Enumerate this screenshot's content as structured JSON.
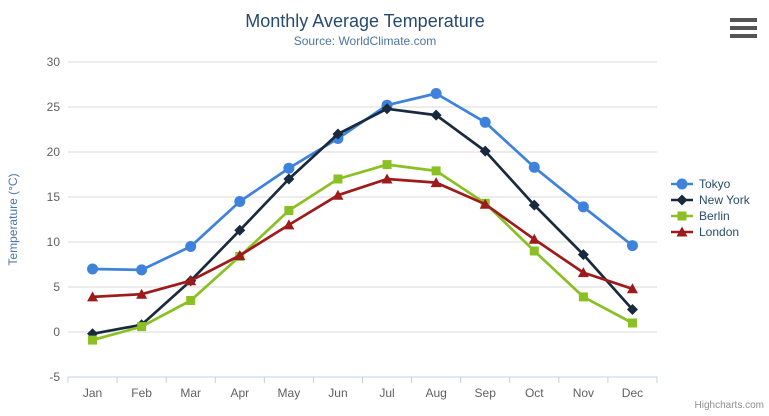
{
  "chart_data": {
    "type": "line",
    "title": "Monthly Average Temperature",
    "subtitle": "Source: WorldClimate.com",
    "categories": [
      "Jan",
      "Feb",
      "Mar",
      "Apr",
      "May",
      "Jun",
      "Jul",
      "Aug",
      "Sep",
      "Oct",
      "Nov",
      "Dec"
    ],
    "series": [
      {
        "name": "Tokyo",
        "color": "#3E82DC",
        "marker": "circle",
        "values": [
          7.0,
          6.9,
          9.5,
          14.5,
          18.2,
          21.5,
          25.2,
          26.5,
          23.3,
          18.3,
          13.9,
          9.6
        ]
      },
      {
        "name": "New York",
        "color": "#192A3E",
        "marker": "diamond",
        "values": [
          -0.2,
          0.8,
          5.7,
          11.3,
          17.0,
          22.0,
          24.8,
          24.1,
          20.1,
          14.1,
          8.6,
          2.5
        ]
      },
      {
        "name": "Berlin",
        "color": "#8BC024",
        "marker": "square",
        "values": [
          -0.9,
          0.6,
          3.5,
          8.4,
          13.5,
          17.0,
          18.6,
          17.9,
          14.3,
          9.0,
          3.9,
          1.0
        ]
      },
      {
        "name": "London",
        "color": "#9E1B1B",
        "marker": "triangle",
        "values": [
          3.9,
          4.2,
          5.7,
          8.5,
          11.9,
          15.2,
          17.0,
          16.6,
          14.2,
          10.3,
          6.6,
          4.8
        ]
      }
    ],
    "xlabel": "",
    "ylabel": "Temperature (°C)",
    "ylim": [
      -5,
      30
    ],
    "ytick_step": 5,
    "grid": true,
    "legend_position": "right"
  },
  "credits": "Highcharts.com",
  "icons": {
    "menu": "hamburger-icon"
  },
  "colors": {
    "title_text": "#274b6d",
    "subtitle_text": "#4d759e",
    "axis_label": "#606060",
    "axis_title": "#4977A9",
    "gridline": "#D8D8D8",
    "axis_line": "#C0D0E0",
    "legend_text": "#274b6d",
    "credits_text": "#909090",
    "background": "#ffffff"
  }
}
